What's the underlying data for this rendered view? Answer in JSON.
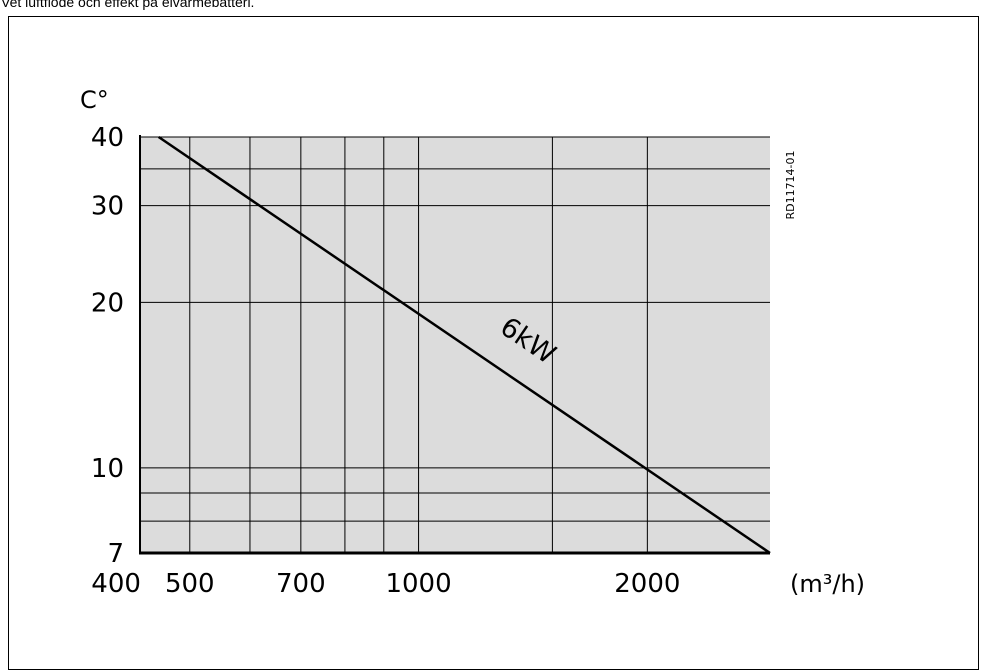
{
  "caption": "Vet luftflöde och effekt på elvärmebatteri.",
  "chart_data": {
    "type": "line",
    "x_scale": "log",
    "y_scale": "log",
    "xlim": [
      430,
      2900
    ],
    "ylim": [
      7,
      40
    ],
    "x_ticks": [
      400,
      500,
      700,
      1000,
      2000
    ],
    "x_tick_labels": [
      "400",
      "500",
      "700",
      "1000",
      "2000"
    ],
    "y_ticks": [
      7,
      10,
      20,
      30,
      40
    ],
    "y_tick_labels": [
      "7",
      "10",
      "20",
      "30",
      "40"
    ],
    "x_gridlines": [
      500,
      600,
      700,
      800,
      900,
      1000,
      1500,
      2000
    ],
    "y_gridlines": [
      8,
      9,
      10,
      20,
      30,
      35,
      40
    ],
    "grid": true,
    "plot_background": "#dcdcdc",
    "y_unit_label": "C°",
    "x_unit_label": "(m³/h)",
    "figure_code": "RD11714-01",
    "series": [
      {
        "name": "6kW",
        "x": [
          455,
          2900
        ],
        "y": [
          40,
          7
        ],
        "color": "#000000"
      }
    ]
  }
}
